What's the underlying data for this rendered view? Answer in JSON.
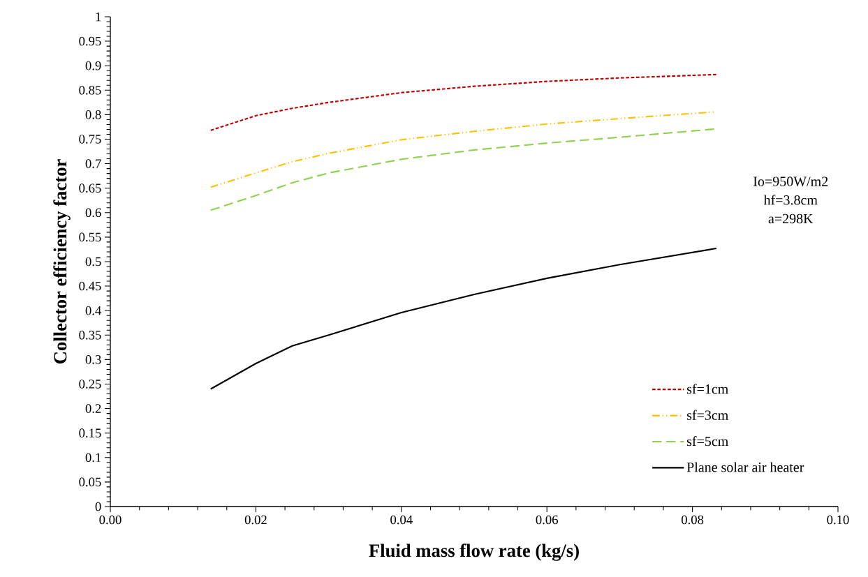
{
  "chart_data": {
    "type": "line",
    "xlabel": "Fluid mass flow rate (kg/s)",
    "ylabel": "Collector efficiency factor",
    "x": [
      0.0138,
      0.02,
      0.025,
      0.03,
      0.04,
      0.05,
      0.06,
      0.07,
      0.0833
    ],
    "series": [
      {
        "name": "sf=1cm",
        "color": "#c00000",
        "line_style": "dotted",
        "values": [
          0.768,
          0.798,
          0.813,
          0.825,
          0.845,
          0.858,
          0.868,
          0.875,
          0.882
        ]
      },
      {
        "name": "sf=3cm",
        "color": "#ffc000",
        "line_style": "dashdot",
        "values": [
          0.652,
          0.681,
          0.704,
          0.721,
          0.749,
          0.766,
          0.781,
          0.792,
          0.806
        ]
      },
      {
        "name": "sf=5cm",
        "color": "#92d050",
        "line_style": "dashed",
        "values": [
          0.605,
          0.635,
          0.661,
          0.681,
          0.709,
          0.728,
          0.742,
          0.754,
          0.771
        ]
      },
      {
        "name": "Plane solar air heater",
        "color": "#000000",
        "line_style": "solid",
        "values": [
          0.24,
          0.292,
          0.328,
          0.35,
          0.396,
          0.433,
          0.466,
          0.494,
          0.527
        ]
      }
    ],
    "xlim": [
      0,
      0.1
    ],
    "ylim": [
      0,
      1
    ],
    "xticks": [
      {
        "value": 0,
        "label": "0.00"
      },
      {
        "value": 0.02,
        "label": "0.02"
      },
      {
        "value": 0.04,
        "label": "0.04"
      },
      {
        "value": 0.06,
        "label": "0.06"
      },
      {
        "value": 0.08,
        "label": "0.08"
      },
      {
        "value": 0.1,
        "label": "0.10"
      }
    ],
    "yticks": [
      0,
      0.05,
      0.1,
      0.15,
      0.2,
      0.25,
      0.3,
      0.35,
      0.4,
      0.45,
      0.5,
      0.55,
      0.6,
      0.65,
      0.7,
      0.75,
      0.8,
      0.85,
      0.9,
      0.95,
      1
    ],
    "annotations": [
      "Io=950W/m2",
      "hf=3.8cm",
      "a=298K"
    ],
    "legend": "bottom right",
    "grid": false,
    "marker": "none"
  }
}
